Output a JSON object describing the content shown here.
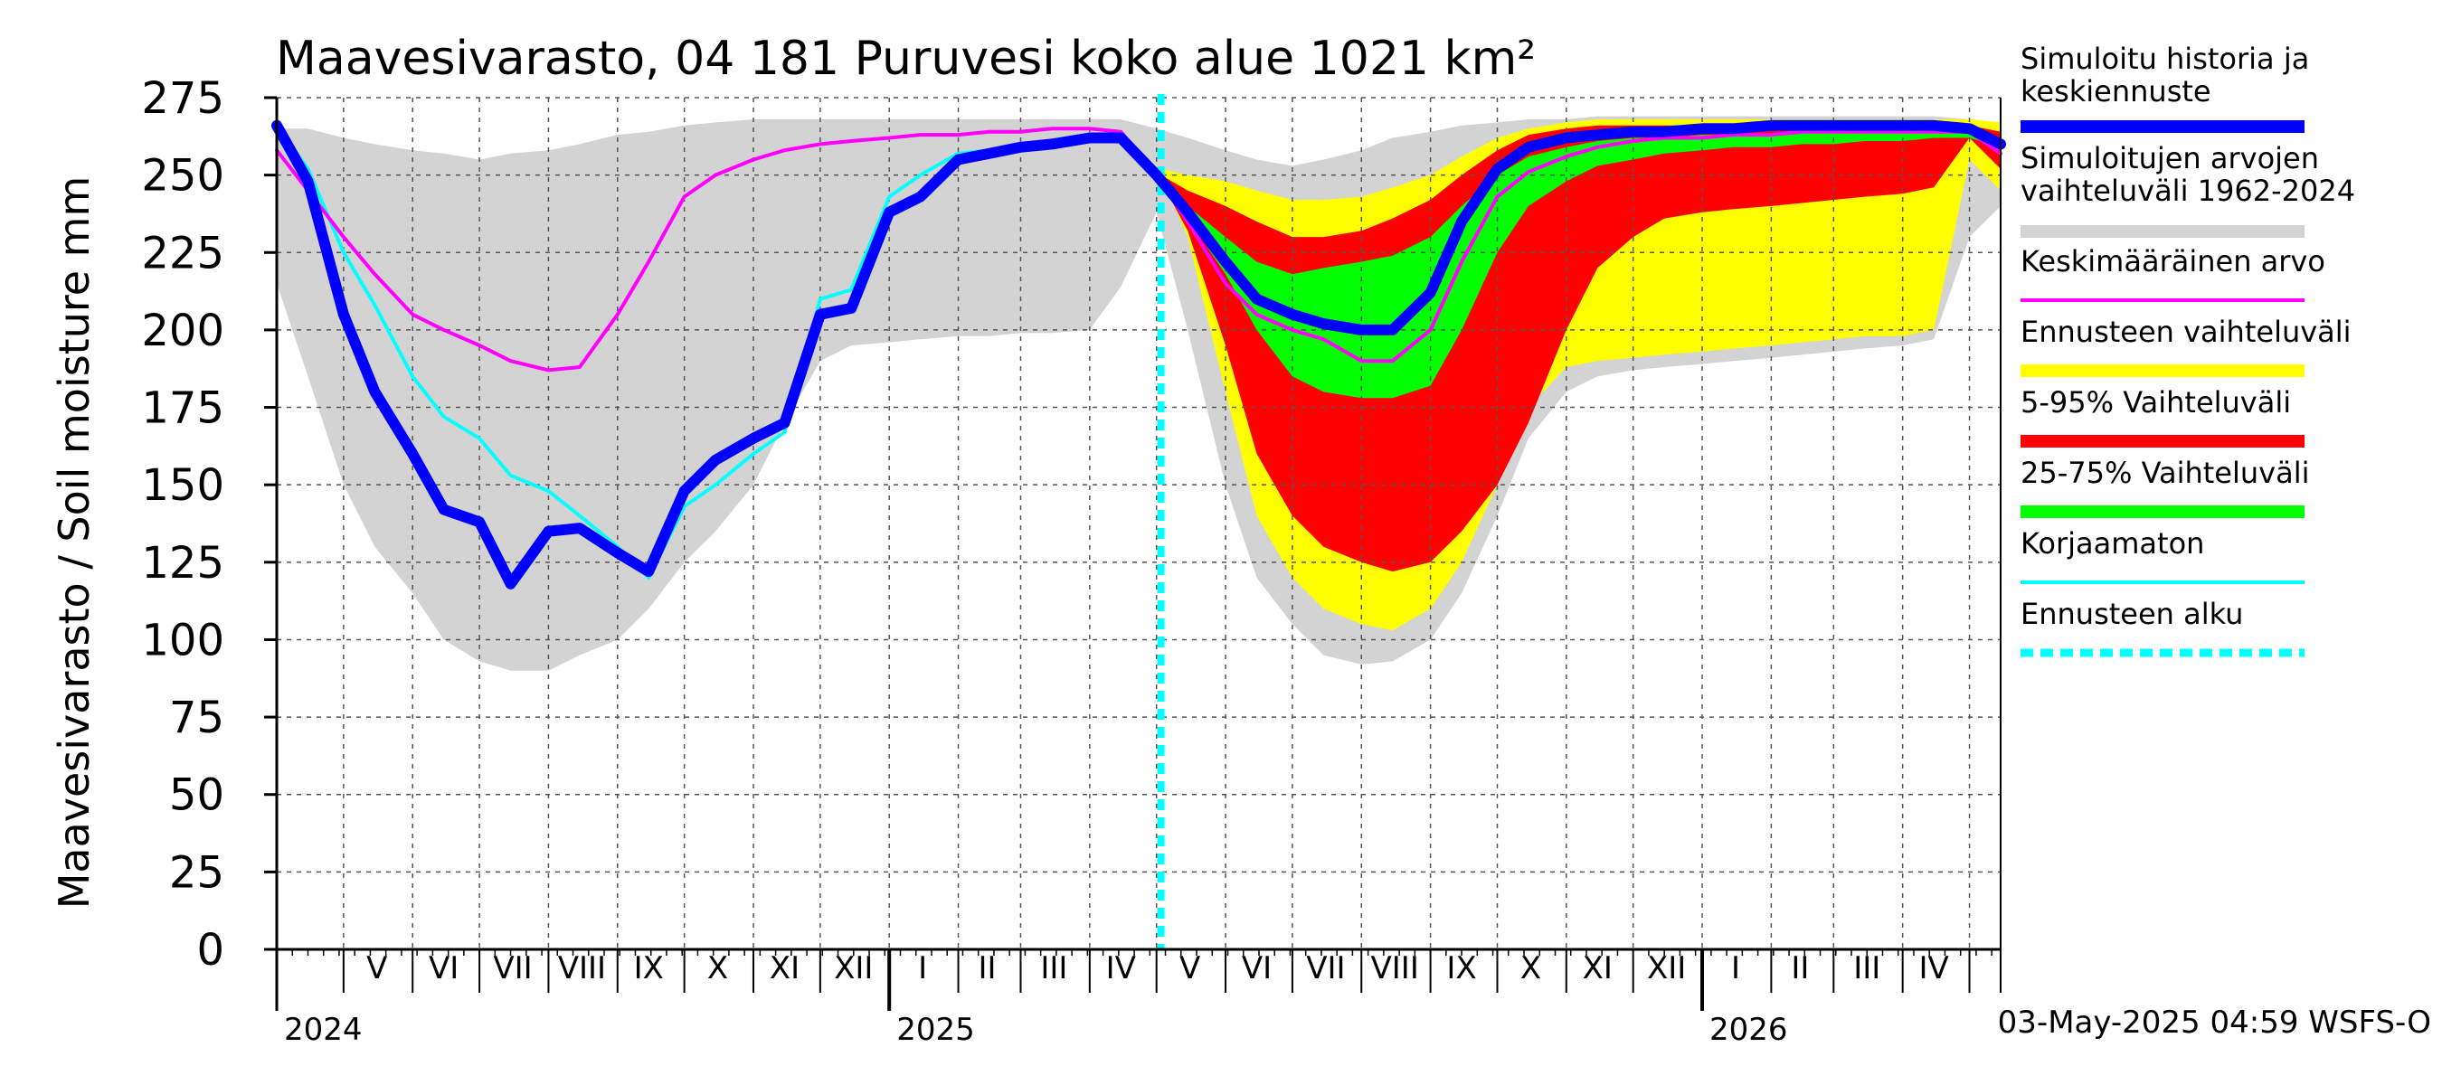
{
  "chart_data": {
    "type": "area",
    "title": "Maavesivarasto, 04 181 Puruvesi koko alue 1021 km²",
    "ylabel": "Maavesivarasto / Soil moisture   mm",
    "ylim": [
      0,
      275
    ],
    "yticks": [
      0,
      25,
      50,
      75,
      100,
      125,
      150,
      175,
      200,
      225,
      250,
      275
    ],
    "xlim": [
      "2024-04-01",
      "2026-05-15"
    ],
    "grid": true,
    "legend_position": "right",
    "forecast_start": "2025-05-03",
    "footer": "03-May-2025 04:59 WSFS-O",
    "month_labels": [
      {
        "label": "V",
        "date": "2024-05-16"
      },
      {
        "label": "VI",
        "date": "2024-06-15"
      },
      {
        "label": "VII",
        "date": "2024-07-16"
      },
      {
        "label": "VIII",
        "date": "2024-08-16"
      },
      {
        "label": "IX",
        "date": "2024-09-15"
      },
      {
        "label": "X",
        "date": "2024-10-16"
      },
      {
        "label": "XI",
        "date": "2024-11-15"
      },
      {
        "label": "XII",
        "date": "2024-12-16"
      },
      {
        "label": "I",
        "date": "2025-01-16"
      },
      {
        "label": "II",
        "date": "2025-02-14"
      },
      {
        "label": "III",
        "date": "2025-03-16"
      },
      {
        "label": "IV",
        "date": "2025-04-15"
      },
      {
        "label": "V",
        "date": "2025-05-16"
      },
      {
        "label": "VI",
        "date": "2025-06-15"
      },
      {
        "label": "VII",
        "date": "2025-07-16"
      },
      {
        "label": "VIII",
        "date": "2025-08-16"
      },
      {
        "label": "IX",
        "date": "2025-09-15"
      },
      {
        "label": "X",
        "date": "2025-10-16"
      },
      {
        "label": "XI",
        "date": "2025-11-15"
      },
      {
        "label": "XII",
        "date": "2025-12-16"
      },
      {
        "label": "I",
        "date": "2026-01-16"
      },
      {
        "label": "II",
        "date": "2026-02-14"
      },
      {
        "label": "III",
        "date": "2026-03-16"
      },
      {
        "label": "IV",
        "date": "2026-04-15"
      }
    ],
    "year_labels": [
      {
        "label": "2024",
        "date": "2024-04-01"
      },
      {
        "label": "2025",
        "date": "2025-01-01"
      },
      {
        "label": "2026",
        "date": "2026-01-01"
      }
    ],
    "legend": [
      {
        "label": "Simuloitu historia ja keskiennuste",
        "color": "#0000ff"
      },
      {
        "label": "Simuloitujen arvojen vaihteluväli 1962-2024",
        "color": "#d3d3d3"
      },
      {
        "label": "Keskimääräinen arvo",
        "color": "#ff00ff"
      },
      {
        "label": "Ennusteen vaihteluväli",
        "color": "#ffff00"
      },
      {
        "label": "5-95% Vaihteluväli",
        "color": "#ff0000"
      },
      {
        "label": "25-75% Vaihteluväli",
        "color": "#00ff00"
      },
      {
        "label": "Korjaamaton",
        "color": "#00ffff"
      },
      {
        "label": "Ennusteen alku",
        "color": "#00ffff"
      }
    ],
    "x": [
      "2024-04-01",
      "2024-04-15",
      "2024-05-01",
      "2024-05-15",
      "2024-06-01",
      "2024-06-15",
      "2024-07-01",
      "2024-07-15",
      "2024-08-01",
      "2024-08-15",
      "2024-09-01",
      "2024-09-15",
      "2024-10-01",
      "2024-10-15",
      "2024-11-01",
      "2024-11-15",
      "2024-12-01",
      "2024-12-15",
      "2025-01-01",
      "2025-01-15",
      "2025-02-01",
      "2025-02-15",
      "2025-03-01",
      "2025-03-15",
      "2025-04-01",
      "2025-04-15",
      "2025-05-01",
      "2025-05-15",
      "2025-06-01",
      "2025-06-15",
      "2025-07-01",
      "2025-07-15",
      "2025-08-01",
      "2025-08-15",
      "2025-09-01",
      "2025-09-15",
      "2025-10-01",
      "2025-10-15",
      "2025-11-01",
      "2025-11-15",
      "2025-12-01",
      "2025-12-15",
      "2026-01-01",
      "2026-01-15",
      "2026-02-01",
      "2026-02-15",
      "2026-03-01",
      "2026-03-15",
      "2026-04-01",
      "2026-04-15",
      "2026-05-01",
      "2026-05-15"
    ],
    "hist_range": {
      "upper": [
        265,
        265,
        262,
        260,
        258,
        257,
        255,
        257,
        258,
        260,
        263,
        264,
        266,
        267,
        268,
        268,
        268,
        268,
        268,
        268,
        268,
        268,
        268,
        268,
        268,
        268,
        265,
        262,
        258,
        255,
        253,
        255,
        258,
        262,
        264,
        266,
        267,
        268,
        268,
        269,
        269,
        269,
        269,
        269,
        269,
        269,
        269,
        269,
        269,
        269,
        268,
        267
      ],
      "lower": [
        215,
        185,
        150,
        130,
        115,
        100,
        93,
        90,
        90,
        95,
        100,
        110,
        125,
        135,
        150,
        170,
        190,
        195,
        196,
        197,
        198,
        198,
        199,
        199,
        200,
        214,
        238,
        200,
        150,
        120,
        105,
        95,
        92,
        93,
        100,
        115,
        140,
        165,
        180,
        185,
        187,
        188,
        189,
        190,
        191,
        192,
        193,
        194,
        195,
        197,
        230,
        240
      ]
    },
    "forecast_yellow": {
      "x": [
        "2025-05-03",
        "2025-05-15",
        "2025-06-01",
        "2025-06-15",
        "2025-07-01",
        "2025-07-15",
        "2025-08-01",
        "2025-08-15",
        "2025-09-01",
        "2025-09-15",
        "2025-10-01",
        "2025-10-15",
        "2025-11-01",
        "2025-11-15",
        "2025-12-01",
        "2025-12-15",
        "2026-01-01",
        "2026-01-15",
        "2026-02-01",
        "2026-02-15",
        "2026-03-01",
        "2026-03-15",
        "2026-04-01",
        "2026-04-15",
        "2026-05-01",
        "2026-05-15"
      ],
      "upper": [
        252,
        250,
        248,
        245,
        242,
        242,
        243,
        246,
        250,
        256,
        262,
        265,
        267,
        268,
        268,
        268,
        268,
        268,
        268,
        268,
        268,
        268,
        268,
        268,
        268,
        267
      ],
      "lower": [
        250,
        230,
        180,
        140,
        120,
        110,
        105,
        103,
        110,
        125,
        150,
        175,
        188,
        190,
        191,
        192,
        193,
        194,
        195,
        196,
        197,
        198,
        198,
        200,
        255,
        245
      ]
    },
    "forecast_red": {
      "x": [
        "2025-05-03",
        "2025-05-15",
        "2025-06-01",
        "2025-06-15",
        "2025-07-01",
        "2025-07-15",
        "2025-08-01",
        "2025-08-15",
        "2025-09-01",
        "2025-09-15",
        "2025-10-01",
        "2025-10-15",
        "2025-11-01",
        "2025-11-15",
        "2025-12-01",
        "2025-12-15",
        "2026-01-01",
        "2026-01-15",
        "2026-02-01",
        "2026-02-15",
        "2026-03-01",
        "2026-03-15",
        "2026-04-01",
        "2026-04-15",
        "2026-05-01",
        "2026-05-15"
      ],
      "upper": [
        250,
        245,
        240,
        235,
        230,
        230,
        232,
        236,
        242,
        250,
        258,
        263,
        265,
        266,
        266,
        266,
        266,
        266,
        266,
        266,
        266,
        266,
        266,
        266,
        266,
        264
      ],
      "lower": [
        248,
        232,
        195,
        160,
        140,
        130,
        125,
        122,
        125,
        135,
        150,
        170,
        200,
        220,
        230,
        236,
        238,
        239,
        240,
        241,
        242,
        243,
        244,
        246,
        262,
        252
      ]
    },
    "forecast_green": {
      "x": [
        "2025-05-03",
        "2025-05-15",
        "2025-06-01",
        "2025-06-15",
        "2025-07-01",
        "2025-07-15",
        "2025-08-01",
        "2025-08-15",
        "2025-09-01",
        "2025-09-15",
        "2025-10-01",
        "2025-10-15",
        "2025-11-01",
        "2025-11-15",
        "2025-12-01",
        "2025-12-15",
        "2026-01-01",
        "2026-01-15",
        "2026-02-01",
        "2026-02-15",
        "2026-03-01",
        "2026-03-15",
        "2026-04-01",
        "2026-04-15",
        "2026-05-01",
        "2026-05-15"
      ],
      "upper": [
        249,
        240,
        230,
        222,
        218,
        220,
        222,
        224,
        230,
        240,
        250,
        256,
        259,
        261,
        262,
        262,
        263,
        263,
        263,
        264,
        264,
        264,
        264,
        265,
        264,
        262
      ],
      "lower": [
        248,
        236,
        218,
        200,
        185,
        180,
        178,
        178,
        182,
        200,
        225,
        240,
        248,
        253,
        255,
        257,
        258,
        259,
        259,
        260,
        260,
        261,
        261,
        262,
        262,
        259
      ]
    },
    "series": [
      {
        "name": "Simuloitu historia ja keskiennuste",
        "color": "#0000ff",
        "x": [
          "2024-04-01",
          "2024-04-15",
          "2024-05-01",
          "2024-05-15",
          "2024-06-01",
          "2024-06-15",
          "2024-07-01",
          "2024-07-15",
          "2024-08-01",
          "2024-08-15",
          "2024-09-01",
          "2024-09-15",
          "2024-10-01",
          "2024-10-15",
          "2024-11-01",
          "2024-11-15",
          "2024-12-01",
          "2024-12-15",
          "2025-01-01",
          "2025-01-15",
          "2025-02-01",
          "2025-02-15",
          "2025-03-01",
          "2025-03-15",
          "2025-04-01",
          "2025-04-15",
          "2025-05-01",
          "2025-05-15",
          "2025-06-01",
          "2025-06-15",
          "2025-07-01",
          "2025-07-15",
          "2025-08-01",
          "2025-08-15",
          "2025-09-01",
          "2025-09-15",
          "2025-10-01",
          "2025-10-15",
          "2025-11-01",
          "2025-11-15",
          "2025-12-01",
          "2025-12-15",
          "2026-01-01",
          "2026-01-15",
          "2026-02-01",
          "2026-02-15",
          "2026-03-01",
          "2026-03-15",
          "2026-04-01",
          "2026-04-15",
          "2026-05-01",
          "2026-05-15"
        ],
        "values": [
          266,
          248,
          205,
          180,
          160,
          142,
          138,
          118,
          135,
          136,
          128,
          122,
          148,
          158,
          165,
          170,
          205,
          207,
          238,
          243,
          255,
          257,
          259,
          260,
          262,
          262,
          250,
          238,
          222,
          210,
          205,
          202,
          200,
          200,
          212,
          235,
          252,
          259,
          262,
          263,
          264,
          264,
          265,
          265,
          266,
          266,
          266,
          266,
          266,
          266,
          265,
          260
        ]
      },
      {
        "name": "Keskimääräinen arvo",
        "color": "#ff00ff",
        "x": [
          "2024-04-01",
          "2024-04-15",
          "2024-05-01",
          "2024-05-15",
          "2024-06-01",
          "2024-06-15",
          "2024-07-01",
          "2024-07-15",
          "2024-08-01",
          "2024-08-15",
          "2024-09-01",
          "2024-09-15",
          "2024-10-01",
          "2024-10-15",
          "2024-11-01",
          "2024-11-15",
          "2024-12-01",
          "2024-12-15",
          "2025-01-01",
          "2025-01-15",
          "2025-02-01",
          "2025-02-15",
          "2025-03-01",
          "2025-03-15",
          "2025-04-01",
          "2025-04-15",
          "2025-05-01",
          "2025-05-15",
          "2025-06-01",
          "2025-06-15",
          "2025-07-01",
          "2025-07-15",
          "2025-08-01",
          "2025-08-15",
          "2025-09-01",
          "2025-09-15",
          "2025-10-01",
          "2025-10-15",
          "2025-11-01",
          "2025-11-15",
          "2025-12-01",
          "2025-12-15",
          "2026-01-01",
          "2026-01-15",
          "2026-02-01",
          "2026-02-15",
          "2026-03-01",
          "2026-03-15",
          "2026-04-01",
          "2026-04-15",
          "2026-05-01",
          "2026-05-15"
        ],
        "values": [
          258,
          245,
          230,
          218,
          205,
          200,
          195,
          190,
          187,
          188,
          205,
          222,
          243,
          250,
          255,
          258,
          260,
          261,
          262,
          263,
          263,
          264,
          264,
          265,
          265,
          264,
          250,
          235,
          215,
          205,
          200,
          197,
          190,
          190,
          200,
          222,
          243,
          251,
          256,
          259,
          261,
          262,
          262,
          263,
          263,
          264,
          264,
          264,
          264,
          264,
          264,
          257
        ]
      },
      {
        "name": "Korjaamaton",
        "color": "#00ffff",
        "x": [
          "2024-04-01",
          "2024-04-15",
          "2024-05-01",
          "2024-05-15",
          "2024-06-01",
          "2024-06-15",
          "2024-07-01",
          "2024-07-15",
          "2024-08-01",
          "2024-08-15",
          "2024-09-01",
          "2024-09-15",
          "2024-10-01",
          "2024-10-15",
          "2024-11-01",
          "2024-11-15",
          "2024-12-01",
          "2024-12-15",
          "2025-01-01",
          "2025-01-15",
          "2025-02-01",
          "2025-02-15",
          "2025-03-01",
          "2025-03-15",
          "2025-04-01",
          "2025-04-15",
          "2025-05-01"
        ],
        "values": [
          266,
          252,
          225,
          208,
          185,
          172,
          165,
          153,
          148,
          140,
          130,
          120,
          143,
          150,
          160,
          167,
          210,
          213,
          243,
          250,
          257,
          258,
          260,
          261,
          263,
          262,
          251
        ]
      }
    ]
  }
}
